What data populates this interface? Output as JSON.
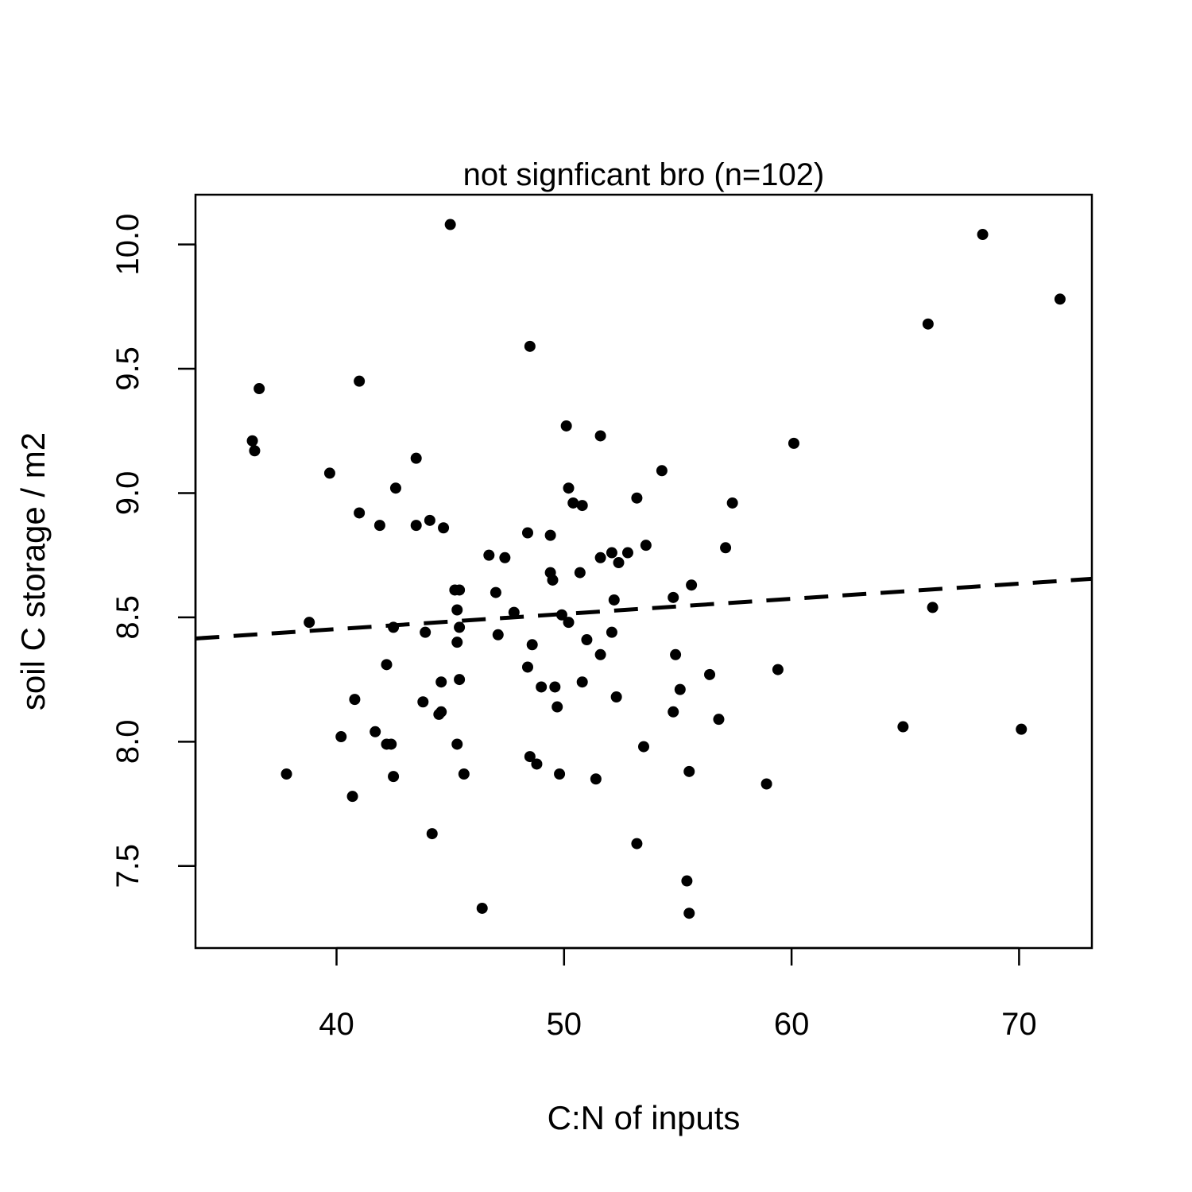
{
  "chart_data": {
    "type": "scatter",
    "title": "not signficant bro (n=102)",
    "xlabel": "C:N of inputs",
    "ylabel": "soil C storage / m2",
    "xlim": [
      33.8,
      73.2
    ],
    "ylim": [
      7.17,
      10.2
    ],
    "xticks": [
      40,
      50,
      60,
      70
    ],
    "xtick_labels": [
      "40",
      "50",
      "60",
      "70"
    ],
    "yticks": [
      7.5,
      8.0,
      8.5,
      9.0,
      9.5,
      10.0
    ],
    "ytick_labels": [
      "7.5",
      "8.0",
      "8.5",
      "9.0",
      "9.5",
      "10.0"
    ],
    "grid": false,
    "trendline": {
      "style": "dashed",
      "x": [
        33.8,
        73.2
      ],
      "y": [
        8.415,
        8.655
      ]
    },
    "points": [
      [
        36.3,
        9.21
      ],
      [
        36.4,
        9.17
      ],
      [
        36.6,
        9.42
      ],
      [
        37.8,
        7.87
      ],
      [
        38.8,
        8.48
      ],
      [
        39.7,
        9.08
      ],
      [
        40.2,
        8.02
      ],
      [
        40.7,
        7.78
      ],
      [
        40.8,
        8.17
      ],
      [
        41.0,
        9.45
      ],
      [
        41.0,
        8.92
      ],
      [
        41.7,
        8.04
      ],
      [
        41.9,
        8.87
      ],
      [
        42.2,
        7.99
      ],
      [
        42.2,
        8.31
      ],
      [
        42.4,
        7.99
      ],
      [
        42.5,
        8.46
      ],
      [
        42.5,
        7.86
      ],
      [
        42.6,
        9.02
      ],
      [
        43.5,
        8.87
      ],
      [
        43.5,
        9.14
      ],
      [
        43.8,
        8.16
      ],
      [
        43.9,
        8.44
      ],
      [
        44.1,
        8.89
      ],
      [
        44.2,
        7.63
      ],
      [
        44.5,
        8.11
      ],
      [
        44.6,
        8.12
      ],
      [
        44.6,
        8.24
      ],
      [
        44.7,
        8.86
      ],
      [
        45.0,
        10.08
      ],
      [
        45.2,
        8.61
      ],
      [
        45.3,
        8.53
      ],
      [
        45.3,
        8.4
      ],
      [
        45.3,
        7.99
      ],
      [
        45.4,
        8.61
      ],
      [
        45.4,
        8.46
      ],
      [
        45.4,
        8.25
      ],
      [
        45.6,
        7.87
      ],
      [
        46.4,
        7.33
      ],
      [
        46.7,
        8.75
      ],
      [
        47.0,
        8.6
      ],
      [
        47.1,
        8.43
      ],
      [
        47.4,
        8.74
      ],
      [
        47.8,
        8.52
      ],
      [
        48.4,
        8.84
      ],
      [
        48.4,
        8.3
      ],
      [
        48.5,
        7.94
      ],
      [
        48.5,
        9.59
      ],
      [
        48.6,
        8.39
      ],
      [
        48.8,
        7.91
      ],
      [
        49.0,
        8.22
      ],
      [
        49.4,
        8.83
      ],
      [
        49.4,
        8.68
      ],
      [
        49.5,
        8.65
      ],
      [
        49.6,
        8.22
      ],
      [
        49.7,
        8.14
      ],
      [
        49.8,
        7.87
      ],
      [
        49.9,
        8.51
      ],
      [
        50.1,
        9.27
      ],
      [
        50.2,
        9.02
      ],
      [
        50.2,
        8.48
      ],
      [
        50.4,
        8.96
      ],
      [
        50.7,
        8.68
      ],
      [
        50.8,
        8.24
      ],
      [
        50.8,
        8.95
      ],
      [
        51.0,
        8.41
      ],
      [
        51.4,
        7.85
      ],
      [
        51.6,
        8.35
      ],
      [
        51.6,
        9.23
      ],
      [
        51.6,
        8.74
      ],
      [
        52.1,
        8.76
      ],
      [
        52.1,
        8.44
      ],
      [
        52.2,
        8.57
      ],
      [
        52.3,
        8.18
      ],
      [
        52.4,
        8.72
      ],
      [
        52.8,
        8.76
      ],
      [
        53.2,
        8.98
      ],
      [
        53.2,
        7.59
      ],
      [
        53.5,
        7.98
      ],
      [
        53.6,
        8.79
      ],
      [
        54.3,
        9.09
      ],
      [
        54.8,
        8.12
      ],
      [
        54.8,
        8.58
      ],
      [
        54.9,
        8.35
      ],
      [
        55.1,
        8.21
      ],
      [
        55.4,
        7.44
      ],
      [
        55.5,
        7.88
      ],
      [
        55.5,
        7.31
      ],
      [
        55.6,
        8.63
      ],
      [
        56.4,
        8.27
      ],
      [
        56.8,
        8.09
      ],
      [
        57.1,
        8.78
      ],
      [
        57.4,
        8.96
      ],
      [
        58.9,
        7.83
      ],
      [
        59.4,
        8.29
      ],
      [
        60.1,
        9.2
      ],
      [
        64.9,
        8.06
      ],
      [
        66.0,
        9.68
      ],
      [
        66.2,
        8.54
      ],
      [
        68.4,
        10.04
      ],
      [
        70.1,
        8.05
      ],
      [
        71.8,
        9.78
      ]
    ]
  }
}
